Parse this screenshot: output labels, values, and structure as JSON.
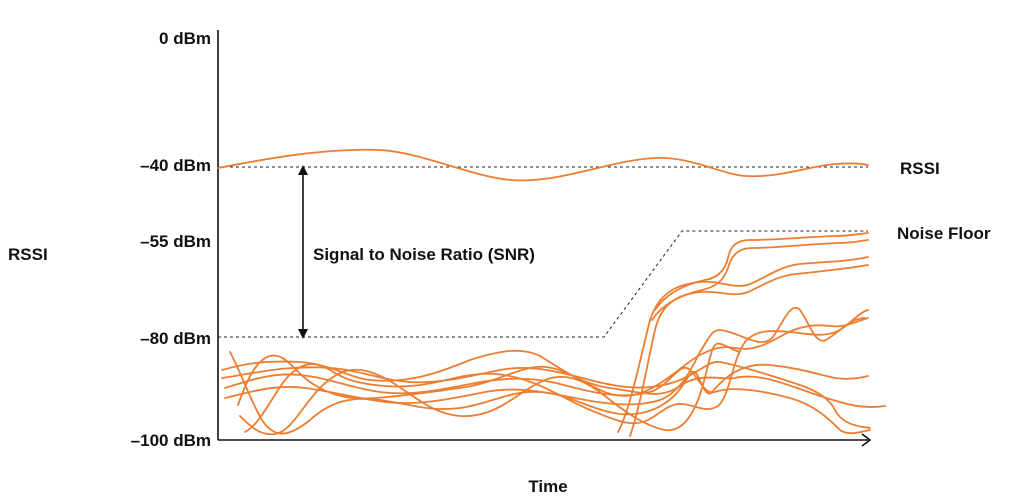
{
  "chart_data": {
    "type": "line",
    "title": "",
    "xlabel": "Time",
    "ylabel": "RSSI",
    "grid": false,
    "legend": "none",
    "y_ticks": [
      "0 dBm",
      "–40 dBm",
      "–55 dBm",
      "–80 dBm",
      "–100 dBm"
    ],
    "y_values": [
      0,
      -40,
      -55,
      -80,
      -100
    ],
    "line_color": "#ED7D31",
    "series_labels": {
      "rssi": "RSSI",
      "noise_floor": "Noise Floor"
    },
    "annotation": "Signal to Noise Ratio (SNR)",
    "rssi_level_dbm": -40,
    "noise_floor_start_dbm": -80,
    "noise_floor_end_dbm": -55
  }
}
